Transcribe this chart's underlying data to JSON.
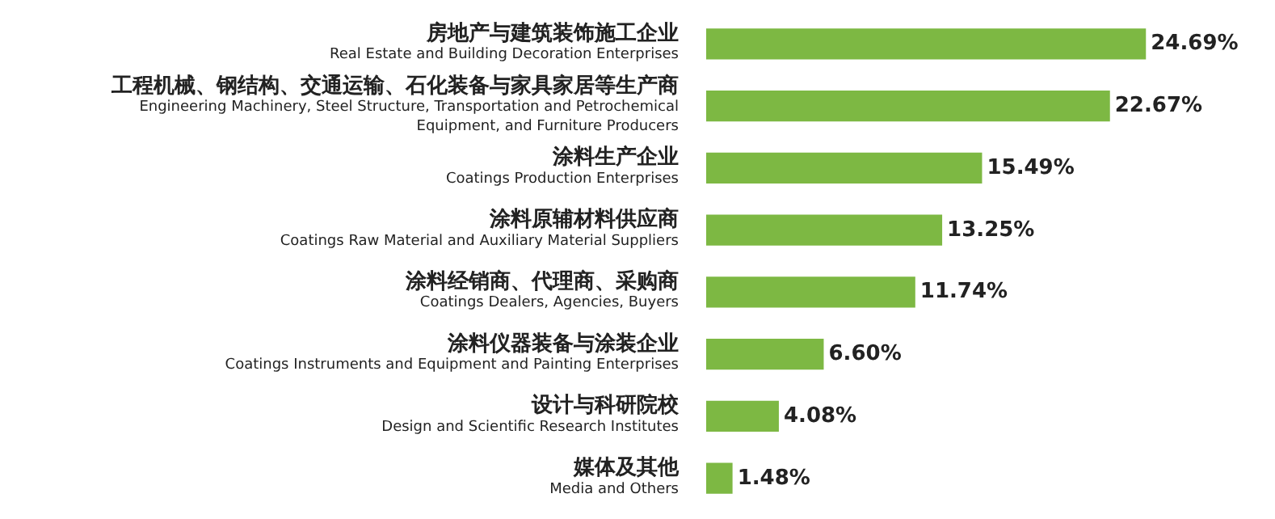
{
  "chart_data": {
    "type": "bar",
    "orientation": "horizontal",
    "categories": [
      "房地产与建筑装饰施工企业\nReal Estate and Building Decoration Enterprises",
      "工程机械、钢结构、交通运输、石化装备与家具家居等生产商\nEngineering Machinery, Steel Structure, Transportation and Petrochemical\nEquipment, and Furniture Producers",
      "涂料生产企业\nCoatings Production Enterprises",
      "涂料原辅材料供应商\nCoatings Raw Material and Auxiliary Material Suppliers",
      "涂料经销商、代理商、采购商\nCoatings Dealers, Agencies, Buyers",
      "涂料仪器装备与涂装企业\nCoatings Instruments and Equipment and Painting Enterprises",
      "设计与科研院校\nDesign and Scientific Research Institutes",
      "媒体及其他\nMedia and Others"
    ],
    "values": [
      24.69,
      22.67,
      15.49,
      13.25,
      11.74,
      6.6,
      4.08,
      1.48
    ],
    "value_labels": [
      "24.69%",
      "22.67%",
      "15.49%",
      "13.25%",
      "11.74%",
      "6.60%",
      "4.08%",
      "1.48%"
    ],
    "color": "#7db843"
  }
}
